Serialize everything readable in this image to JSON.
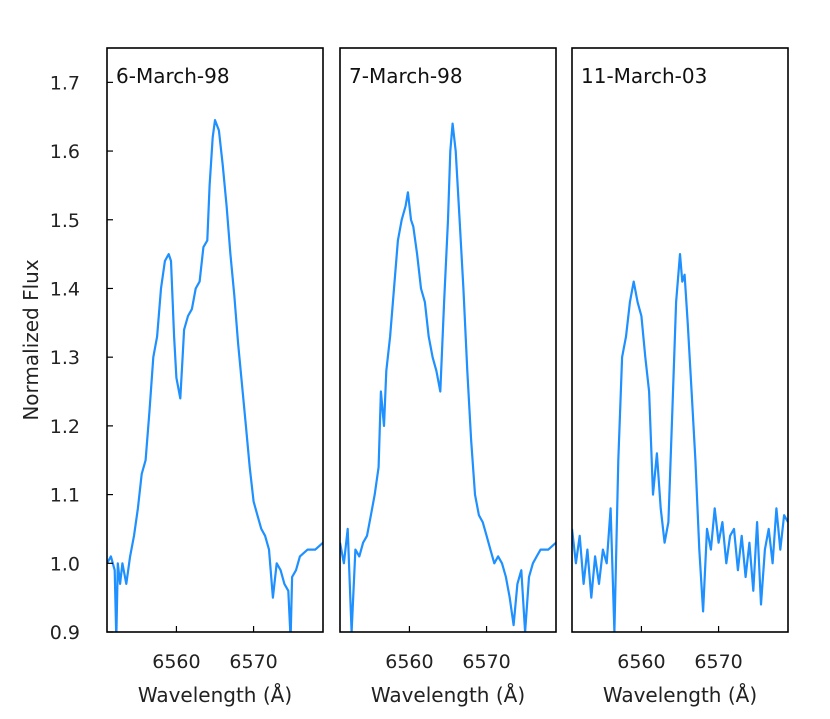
{
  "chart_data": {
    "type": "line",
    "ylabel": "Normalized Flux",
    "xlabel": "Wavelength (Å)",
    "ylim": [
      0.9,
      1.75
    ],
    "xlim": [
      6551.0,
      6579.0
    ],
    "yticks": [
      0.9,
      1.0,
      1.1,
      1.2,
      1.3,
      1.4,
      1.5,
      1.6,
      1.7
    ],
    "xticks": [
      6560,
      6570
    ],
    "grid": false,
    "line_color": "#1e90ff",
    "panels": [
      {
        "title": "6-March-98",
        "x": [
          6551.0,
          6551.5,
          6552.0,
          6552.2,
          6552.4,
          6552.7,
          6553.0,
          6553.5,
          6554.0,
          6554.5,
          6555.0,
          6555.5,
          6556.0,
          6556.5,
          6557.0,
          6557.5,
          6558.0,
          6558.5,
          6559.0,
          6559.3,
          6559.7,
          6560.0,
          6560.5,
          6560.8,
          6561.0,
          6561.5,
          6562.0,
          6562.5,
          6563.0,
          6563.5,
          6564.0,
          6564.3,
          6564.7,
          6565.0,
          6565.5,
          6566.0,
          6566.5,
          6567.0,
          6567.5,
          6568.0,
          6568.5,
          6569.0,
          6569.5,
          6570.0,
          6570.5,
          6571.0,
          6571.5,
          6572.0,
          6572.5,
          6573.0,
          6573.5,
          6574.0,
          6574.5,
          6574.8,
          6575.0,
          6575.5,
          6576.0,
          6577.0,
          6578.0,
          6579.0
        ],
        "y": [
          1.0,
          1.01,
          0.99,
          0.89,
          1.0,
          0.97,
          1.0,
          0.97,
          1.01,
          1.04,
          1.08,
          1.13,
          1.15,
          1.22,
          1.3,
          1.33,
          1.4,
          1.44,
          1.45,
          1.44,
          1.33,
          1.27,
          1.24,
          1.3,
          1.34,
          1.36,
          1.37,
          1.4,
          1.41,
          1.46,
          1.47,
          1.55,
          1.62,
          1.645,
          1.63,
          1.58,
          1.52,
          1.45,
          1.39,
          1.32,
          1.26,
          1.2,
          1.14,
          1.09,
          1.07,
          1.05,
          1.04,
          1.02,
          0.95,
          1.0,
          0.99,
          0.97,
          0.96,
          0.89,
          0.98,
          0.99,
          1.01,
          1.02,
          1.02,
          1.03
        ]
      },
      {
        "title": "7-March-98",
        "x": [
          6551.0,
          6551.5,
          6552.0,
          6552.5,
          6553.0,
          6553.5,
          6554.0,
          6554.5,
          6555.0,
          6555.5,
          6556.0,
          6556.3,
          6556.7,
          6557.0,
          6557.5,
          6558.0,
          6558.5,
          6559.0,
          6559.5,
          6559.8,
          6560.2,
          6560.5,
          6561.0,
          6561.5,
          6562.0,
          6562.5,
          6563.0,
          6563.5,
          6564.0,
          6564.5,
          6565.0,
          6565.3,
          6565.6,
          6566.0,
          6566.5,
          6567.0,
          6567.5,
          6568.0,
          6568.5,
          6569.0,
          6569.5,
          6570.0,
          6570.5,
          6571.0,
          6571.5,
          6572.0,
          6572.5,
          6573.0,
          6573.5,
          6574.0,
          6574.5,
          6575.0,
          6575.5,
          6576.0,
          6576.5,
          6577.0,
          6578.0,
          6579.0
        ],
        "y": [
          1.03,
          1.0,
          1.05,
          0.9,
          1.02,
          1.01,
          1.03,
          1.04,
          1.07,
          1.1,
          1.14,
          1.25,
          1.2,
          1.28,
          1.33,
          1.4,
          1.47,
          1.5,
          1.52,
          1.54,
          1.5,
          1.49,
          1.45,
          1.4,
          1.38,
          1.33,
          1.3,
          1.28,
          1.25,
          1.38,
          1.5,
          1.6,
          1.64,
          1.6,
          1.5,
          1.4,
          1.28,
          1.18,
          1.1,
          1.07,
          1.06,
          1.04,
          1.02,
          1.0,
          1.01,
          1.0,
          0.98,
          0.95,
          0.91,
          0.97,
          0.99,
          0.9,
          0.98,
          1.0,
          1.01,
          1.02,
          1.02,
          1.03
        ]
      },
      {
        "title": "11-March-03",
        "x": [
          6551.0,
          6551.5,
          6552.0,
          6552.5,
          6553.0,
          6553.5,
          6554.0,
          6554.5,
          6555.0,
          6555.5,
          6556.0,
          6556.5,
          6557.0,
          6557.5,
          6558.0,
          6558.5,
          6559.0,
          6559.5,
          6560.0,
          6560.5,
          6561.0,
          6561.5,
          6562.0,
          6562.5,
          6563.0,
          6563.5,
          6564.0,
          6564.5,
          6565.0,
          6565.3,
          6565.6,
          6566.0,
          6566.5,
          6567.0,
          6567.5,
          6568.0,
          6568.5,
          6569.0,
          6569.5,
          6570.0,
          6570.5,
          6571.0,
          6571.5,
          6572.0,
          6572.5,
          6573.0,
          6573.5,
          6574.0,
          6574.5,
          6575.0,
          6575.5,
          6576.0,
          6576.5,
          6577.0,
          6577.5,
          6578.0,
          6578.5,
          6579.0
        ],
        "y": [
          1.05,
          1.0,
          1.04,
          0.97,
          1.02,
          0.95,
          1.01,
          0.97,
          1.02,
          1.0,
          1.08,
          0.9,
          1.15,
          1.3,
          1.33,
          1.38,
          1.41,
          1.38,
          1.36,
          1.3,
          1.25,
          1.1,
          1.16,
          1.08,
          1.03,
          1.06,
          1.22,
          1.38,
          1.45,
          1.41,
          1.42,
          1.35,
          1.25,
          1.15,
          1.02,
          0.93,
          1.05,
          1.02,
          1.08,
          1.03,
          1.06,
          1.0,
          1.04,
          1.05,
          0.99,
          1.04,
          0.98,
          1.03,
          0.96,
          1.06,
          0.94,
          1.02,
          1.05,
          1.0,
          1.08,
          1.02,
          1.07,
          1.06
        ]
      }
    ]
  }
}
